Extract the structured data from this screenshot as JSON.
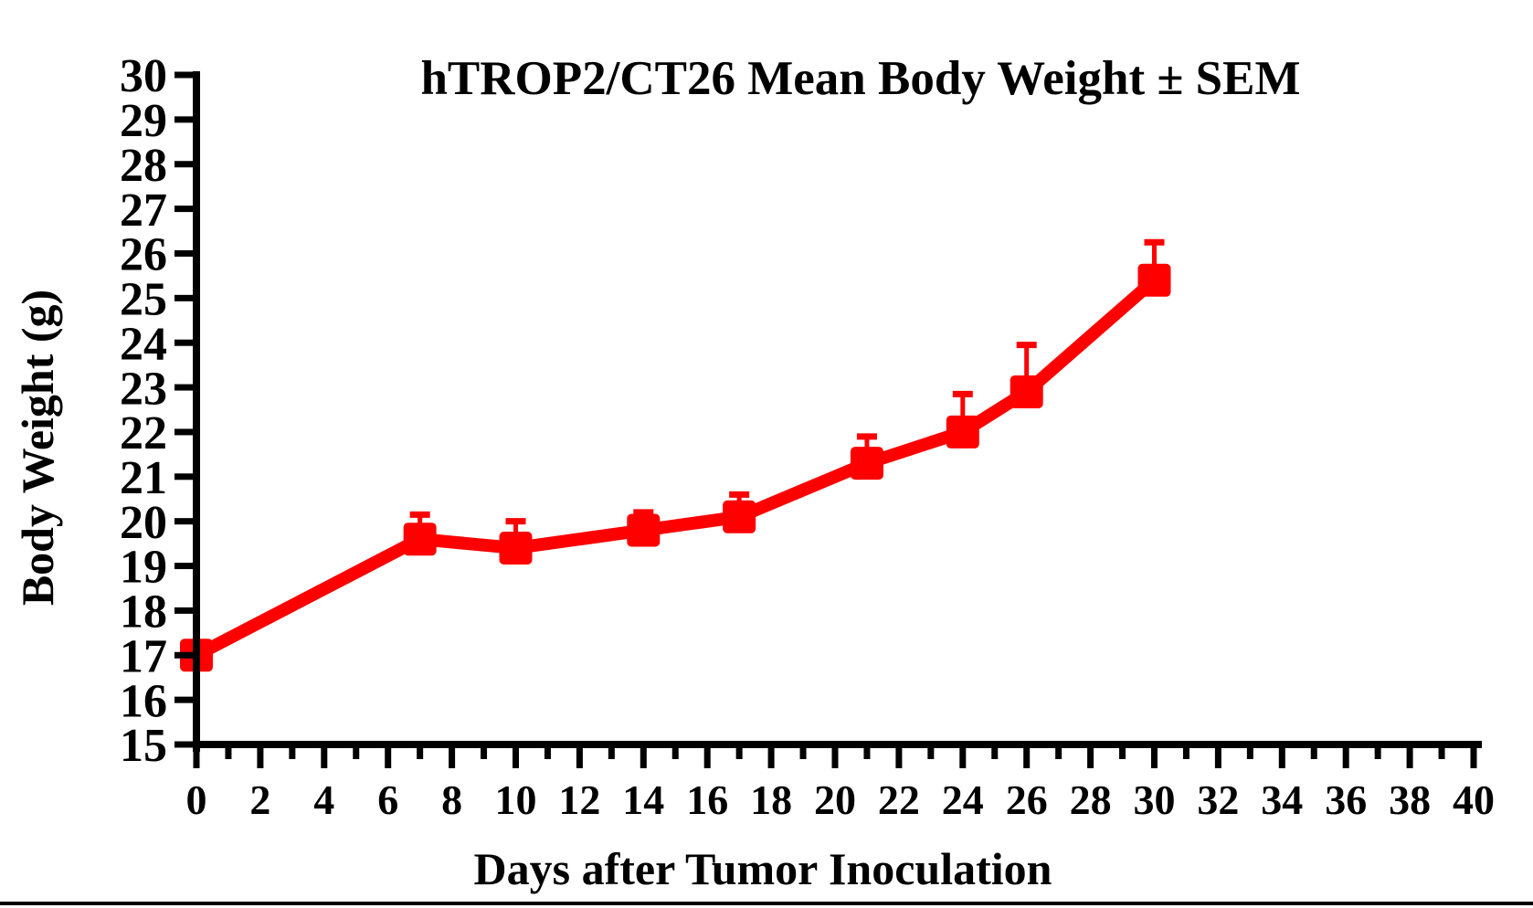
{
  "figure": {
    "background_color": "#ffffff",
    "bottom_rule_color": "#000000"
  },
  "chart_data": {
    "type": "line",
    "title": "hTROP2/CT26 Mean Body Weight ± SEM",
    "xlabel": "Days after Tumor Inoculation",
    "ylabel": "Body Weight (g)",
    "x": [
      0,
      7,
      10,
      14,
      17,
      21,
      24,
      26,
      30
    ],
    "series": [
      {
        "name": "hTROP2/CT26 mean body weight",
        "values": [
          17.0,
          19.6,
          19.4,
          19.8,
          20.1,
          21.3,
          22.0,
          22.9,
          25.4
        ],
        "sem_upper": [
          0,
          0.55,
          0.6,
          0.4,
          0.5,
          0.6,
          0.85,
          1.05,
          0.85
        ]
      }
    ],
    "xlim": [
      0,
      40
    ],
    "ylim": [
      15,
      30
    ],
    "x_major_tick_step": 2,
    "x_minor_tick_step": 1,
    "y_tick_step": 1,
    "x_tick_labels": [
      0,
      2,
      4,
      6,
      8,
      10,
      12,
      14,
      16,
      18,
      20,
      22,
      24,
      26,
      28,
      30,
      32,
      34,
      36,
      38,
      40
    ],
    "y_tick_labels": [
      15,
      16,
      17,
      18,
      19,
      20,
      21,
      22,
      23,
      24,
      25,
      26,
      27,
      28,
      29,
      30
    ],
    "grid": false,
    "legend_position": "none",
    "series_color": "#ff0000",
    "axis_color": "#000000",
    "marker": "square",
    "error_bars": "upper-only"
  }
}
